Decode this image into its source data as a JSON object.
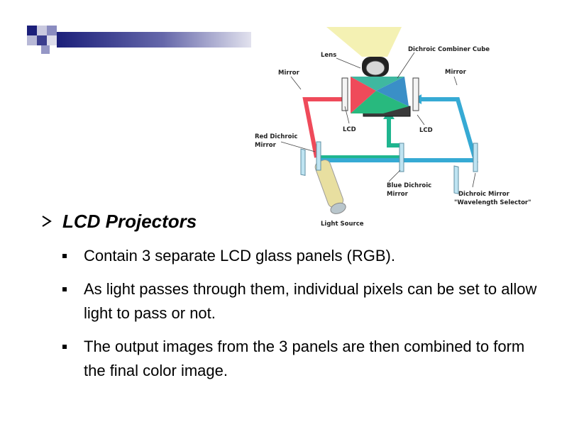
{
  "slide": {
    "heading": "LCD Projectors",
    "bullets": [
      "Contain 3 separate LCD glass panels (RGB).",
      "As light passes through them, individual pixels can be set to allow light to pass or not.",
      "The output images from the 3 panels are then combined to form the final color image."
    ]
  },
  "diagram": {
    "labels": {
      "lens": "Lens",
      "combiner": "Dichroic Combiner Cube",
      "mirror_left": "Mirror",
      "mirror_right": "Mirror",
      "lcd_left": "LCD",
      "lcd_right": "LCD",
      "red_dichroic_1": "Red Dichroic",
      "red_dichroic_2": "Mirror",
      "blue_dichroic_1": "Blue Dichroic",
      "blue_dichroic_2": "Mirror",
      "dichroic_selector_1": "Dichroic Mirror",
      "dichroic_selector_2": "\"Wavelength Selector\"",
      "light_source": "Light Source"
    }
  },
  "colors": {
    "header_bar": "#1b1f7a",
    "red_path": "#ef4a5a",
    "green_path": "#1fb58f",
    "blue_path": "#36aad4"
  }
}
